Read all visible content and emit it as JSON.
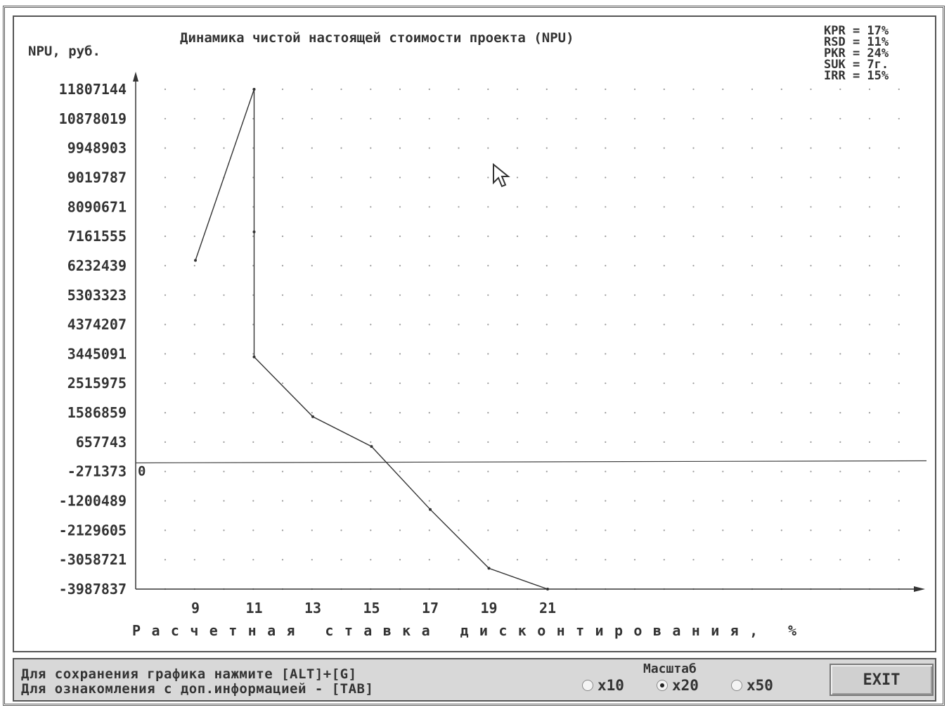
{
  "chart_data": {
    "type": "line",
    "title": "Динамика чистой настоящей стоимости проекта (NPU)",
    "ylabel": "NPU, руб.",
    "xlabel": "Расчетная ставка дисконтирования, %",
    "x_ticks": [
      "9",
      "11",
      "13",
      "15",
      "17",
      "19",
      "21"
    ],
    "y_ticks": [
      "11807144",
      "10878019",
      "9948903",
      "9019787",
      "8090671",
      "7161555",
      "6232439",
      "5303323",
      "4374207",
      "3445091",
      "2515975",
      "1586859",
      "657743",
      "-271373",
      "-1200489",
      "-2129605",
      "-3058721",
      "-3987837"
    ],
    "ylim": [
      -3987837,
      11807144
    ],
    "zero_label": "0",
    "grid": "dotted",
    "series": [
      {
        "x": [
          9,
          11,
          11,
          11,
          13,
          15,
          17,
          19,
          21
        ],
        "y": [
          6400000,
          11807144,
          7300000,
          3350000,
          1460000,
          520000,
          -1470000,
          -3330000,
          -3987837
        ]
      }
    ],
    "indicators": [
      {
        "label": "KPR",
        "value": "17%"
      },
      {
        "label": "RSD",
        "value": "11%"
      },
      {
        "label": "PKR",
        "value": "24%"
      },
      {
        "label": "SUK",
        "value": "7г."
      },
      {
        "label": "IRR",
        "value": "15%"
      }
    ]
  },
  "status": {
    "hint1": "Для сохранения графика нажмите [ALT]+[G]",
    "hint2": "Для ознакомления с доп.информацией - [TAB]",
    "scale_title": "Масштаб",
    "scale_options": [
      "x10",
      "x20",
      "x50"
    ],
    "scale_selected": "x20",
    "exit_label": "EXIT"
  },
  "icons": {
    "cursor": "mouse-pointer-icon"
  }
}
